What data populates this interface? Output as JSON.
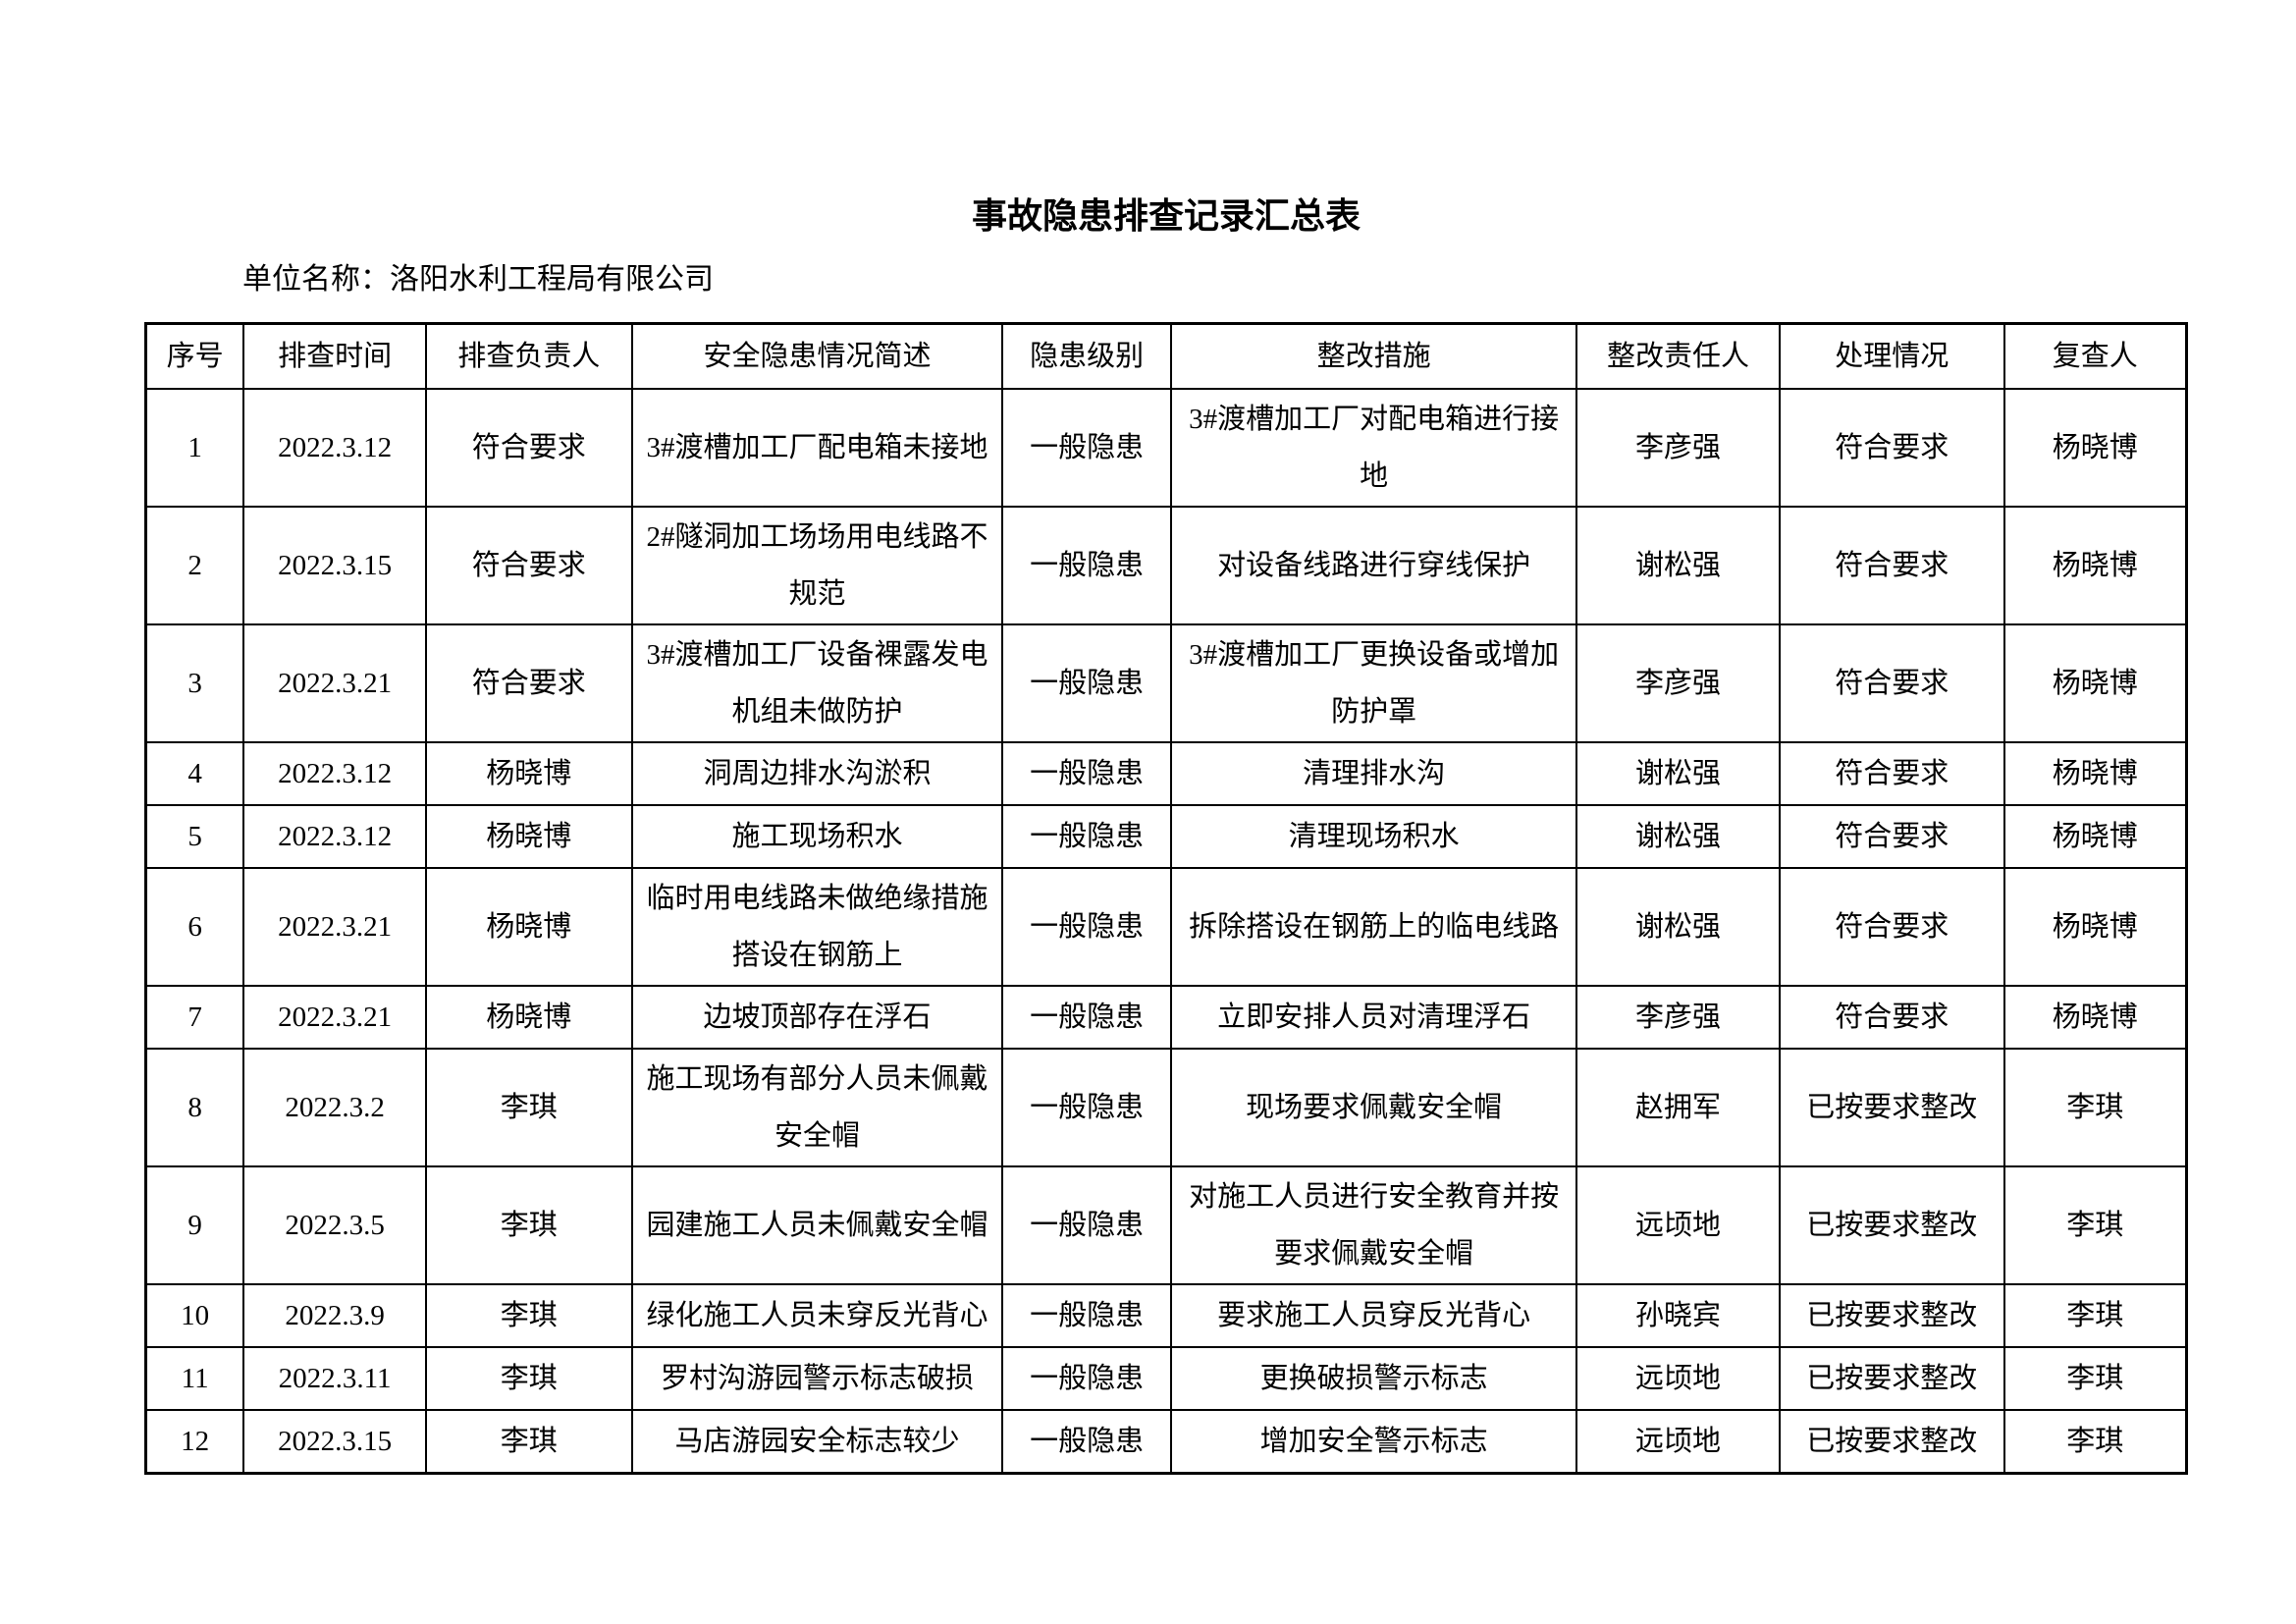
{
  "page": {
    "title": "事故隐患排查记录汇总表",
    "unit_label": "单位名称：洛阳水利工程局有限公司"
  },
  "table": {
    "headers": [
      "序号",
      "排查时间",
      "排查负责人",
      "安全隐患情况简述",
      "隐患级别",
      "整改措施",
      "整改责任人",
      "处理情况",
      "复查人"
    ],
    "col_widths_pct": [
      4.8,
      8.93,
      10.09,
      18.16,
      8.26,
      19.88,
      9.94,
      11.0,
      8.94
    ],
    "rows": [
      [
        "1",
        "2022.3.12",
        "符合要求",
        "3#渡槽加工厂配电箱未接地",
        "一般隐患",
        "3#渡槽加工厂对配电箱进行接地",
        "李彦强",
        "符合要求",
        "杨晓博"
      ],
      [
        "2",
        "2022.3.15",
        "符合要求",
        "2#隧洞加工场场用电线路不规范",
        "一般隐患",
        "对设备线路进行穿线保护",
        "谢松强",
        "符合要求",
        "杨晓博"
      ],
      [
        "3",
        "2022.3.21",
        "符合要求",
        "3#渡槽加工厂设备裸露发电机组未做防护",
        "一般隐患",
        "3#渡槽加工厂更换设备或增加防护罩",
        "李彦强",
        "符合要求",
        "杨晓博"
      ],
      [
        "4",
        "2022.3.12",
        "杨晓博",
        "洞周边排水沟淤积",
        "一般隐患",
        "清理排水沟",
        "谢松强",
        "符合要求",
        "杨晓博"
      ],
      [
        "5",
        "2022.3.12",
        "杨晓博",
        "施工现场积水",
        "一般隐患",
        "清理现场积水",
        "谢松强",
        "符合要求",
        "杨晓博"
      ],
      [
        "6",
        "2022.3.21",
        "杨晓博",
        "临时用电线路未做绝缘措施搭设在钢筋上",
        "一般隐患",
        "拆除搭设在钢筋上的临电线路",
        "谢松强",
        "符合要求",
        "杨晓博"
      ],
      [
        "7",
        "2022.3.21",
        "杨晓博",
        "边坡顶部存在浮石",
        "一般隐患",
        "立即安排人员对清理浮石",
        "李彦强",
        "符合要求",
        "杨晓博"
      ],
      [
        "8",
        "2022.3.2",
        "李琪",
        "施工现场有部分人员未佩戴安全帽",
        "一般隐患",
        "现场要求佩戴安全帽",
        "赵拥军",
        "已按要求整改",
        "李琪"
      ],
      [
        "9",
        "2022.3.5",
        "李琪",
        "园建施工人员未佩戴安全帽",
        "一般隐患",
        "对施工人员进行安全教育并按要求佩戴安全帽",
        "远顷地",
        "已按要求整改",
        "李琪"
      ],
      [
        "10",
        "2022.3.9",
        "李琪",
        "绿化施工人员未穿反光背心",
        "一般隐患",
        "要求施工人员穿反光背心",
        "孙晓宾",
        "已按要求整改",
        "李琪"
      ],
      [
        "11",
        "2022.3.11",
        "李琪",
        "罗村沟游园警示标志破损",
        "一般隐患",
        "更换破损警示标志",
        "远顷地",
        "已按要求整改",
        "李琪"
      ],
      [
        "12",
        "2022.3.15",
        "李琪",
        "马店游园安全标志较少",
        "一般隐患",
        "增加安全警示标志",
        "远顷地",
        "已按要求整改",
        "李琪"
      ]
    ]
  }
}
